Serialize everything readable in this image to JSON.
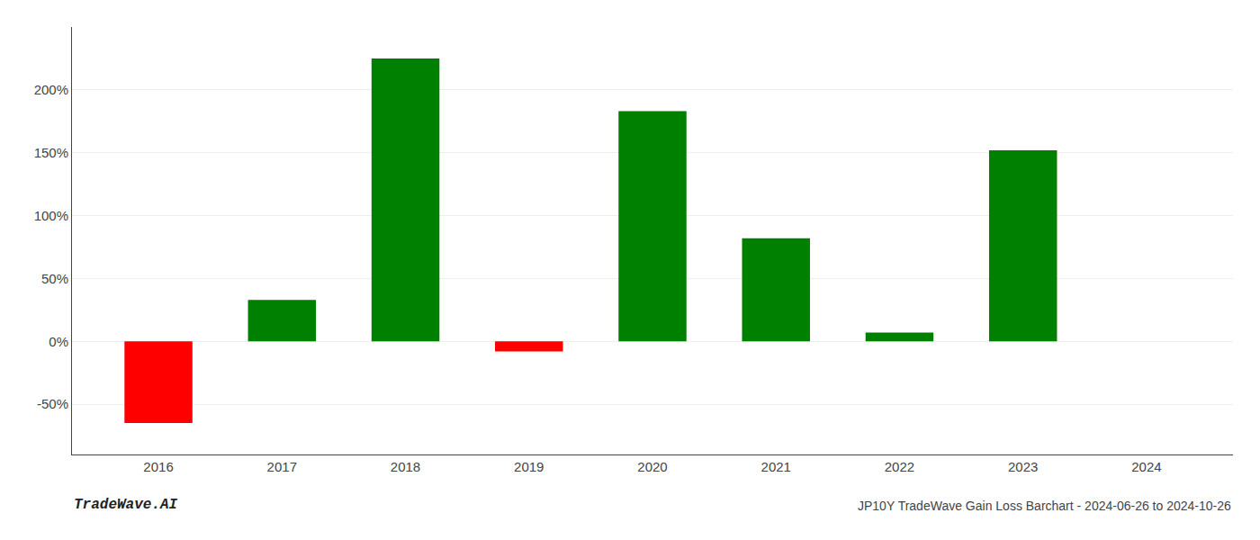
{
  "chart_data": {
    "type": "bar",
    "x": [
      2016,
      2017,
      2018,
      2019,
      2020,
      2021,
      2022,
      2023
    ],
    "values": [
      -65.0,
      33.0,
      225.0,
      -8.0,
      183.0,
      82.0,
      7.0,
      152.0
    ],
    "colors": [
      "#ff0000",
      "#008000",
      "#008000",
      "#ff0000",
      "#008000",
      "#008000",
      "#008000",
      "#008000"
    ],
    "xlim": [
      2015.3,
      2024.7
    ],
    "xticks": [
      2016,
      2017,
      2018,
      2019,
      2020,
      2021,
      2022,
      2023,
      2024
    ],
    "ylim": [
      -90,
      250
    ],
    "yticks": [
      {
        "value": -50,
        "label": "-50%"
      },
      {
        "value": 0,
        "label": "0%"
      },
      {
        "value": 50,
        "label": "50%"
      },
      {
        "value": 100,
        "label": "100%"
      },
      {
        "value": 150,
        "label": "150%"
      },
      {
        "value": 200,
        "label": "200%"
      }
    ],
    "grid": true,
    "annotations": [
      "TradeWave.AI",
      "JP10Y TradeWave Gain Loss Barchart - 2024-06-26 to 2024-10-26"
    ]
  }
}
